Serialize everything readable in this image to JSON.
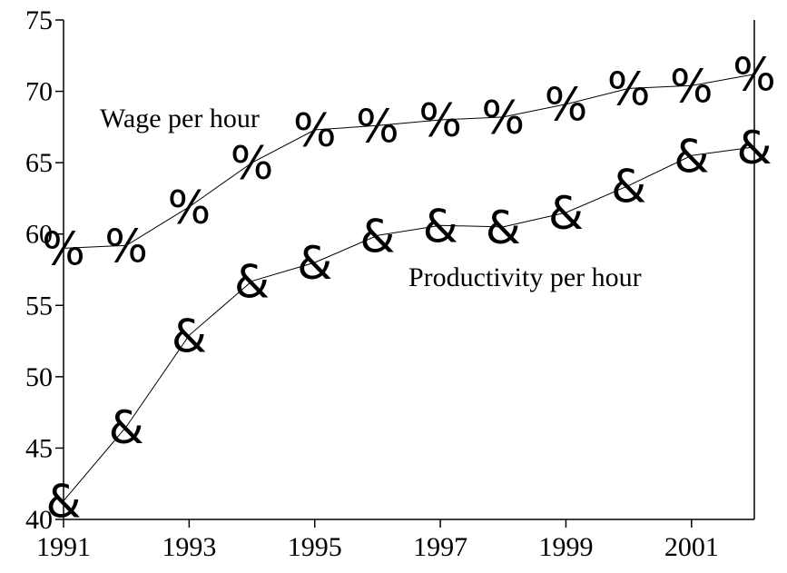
{
  "chart_data": {
    "type": "line",
    "x": [
      1991,
      1992,
      1993,
      1994,
      1995,
      1996,
      1997,
      1998,
      1999,
      2000,
      2001,
      2002
    ],
    "series": [
      {
        "name": "Wage per hour",
        "color": "#000000",
        "marker": "%",
        "values": [
          59,
          59.2,
          61.9,
          65,
          67.3,
          67.6,
          68,
          68.2,
          69.1,
          70.2,
          70.4,
          71.2
        ]
      },
      {
        "name": "Productivity per hour",
        "color": "#000000",
        "marker": "&",
        "values": [
          41.3,
          46.5,
          52.9,
          56.7,
          58,
          59.9,
          60.6,
          60.5,
          61.5,
          63.4,
          65.5,
          66.1
        ]
      }
    ],
    "xlim": [
      1991,
      2002
    ],
    "xticks": [
      1991,
      1993,
      1995,
      1997,
      1999,
      2001
    ],
    "ylim": [
      40,
      75
    ],
    "yticks": [
      40,
      45,
      50,
      55,
      60,
      65,
      70,
      75
    ]
  }
}
